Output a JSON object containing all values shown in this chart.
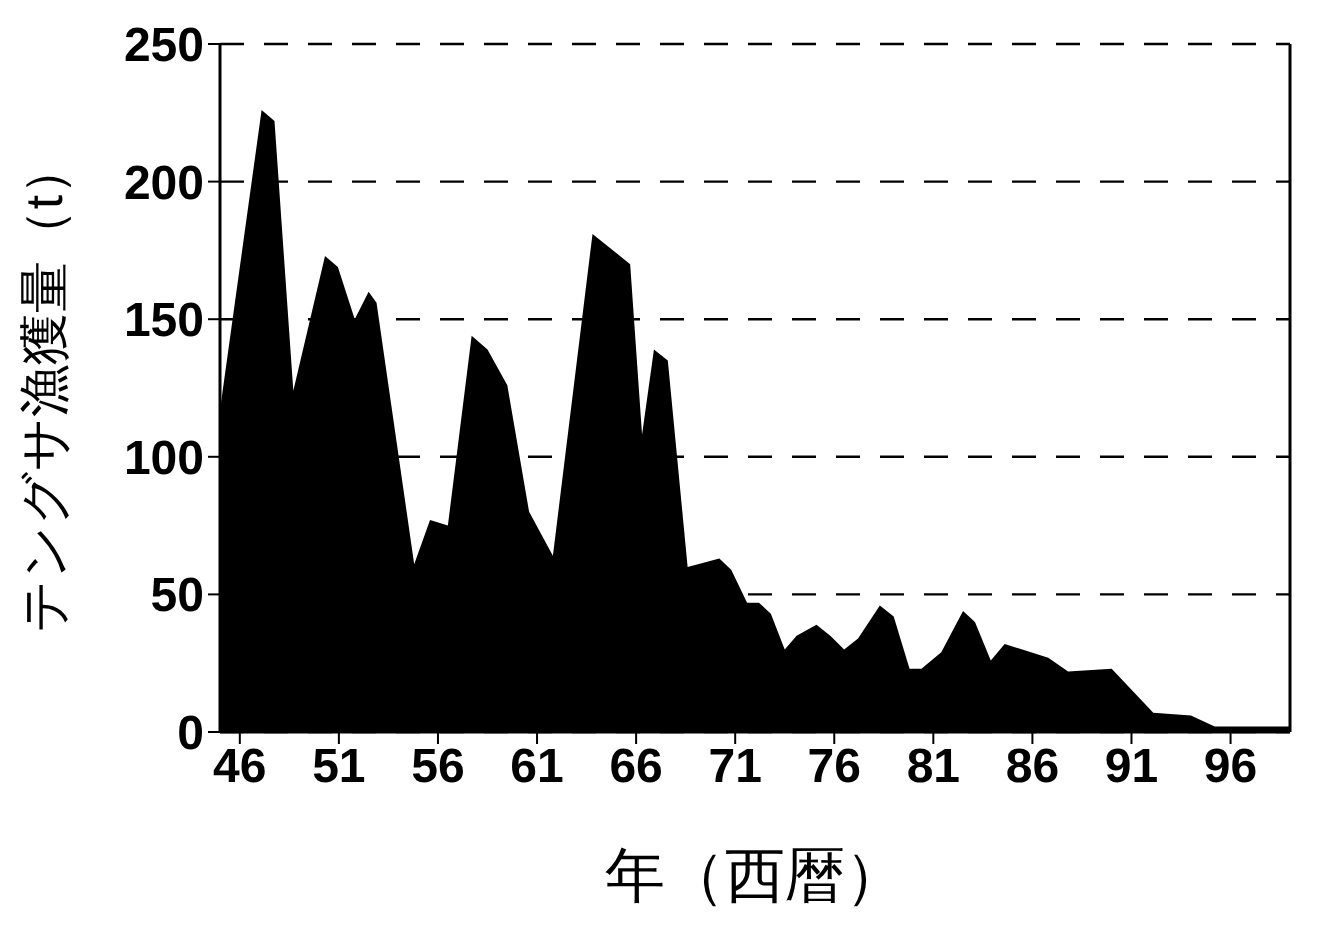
{
  "chart_data": {
    "type": "area",
    "xlabel": "年（西暦）",
    "ylabel": "テングサ漁獲量（t）",
    "x": [
      45.0,
      47.1,
      47.75,
      48.7,
      50.3,
      50.95,
      51.8,
      52.5,
      52.9,
      54.8,
      55.6,
      56.5,
      57.7,
      58.5,
      59.5,
      60.6,
      61.8,
      63.8,
      65.7,
      66.3,
      66.9,
      67.6,
      68.6,
      70.2,
      70.8,
      71.6,
      72.2,
      72.8,
      73.5,
      74.1,
      75.1,
      75.8,
      76.5,
      77.2,
      78.3,
      79.0,
      79.8,
      80.4,
      81.4,
      82.5,
      83.1,
      83.9,
      84.6,
      86.8,
      87.8,
      90.0,
      92.1,
      94.0,
      95.2,
      99.0
    ],
    "series": [
      {
        "color": "#000000",
        "values": [
          117,
          226,
          222,
          124,
          173,
          169,
          150,
          160,
          156,
          61,
          77,
          75,
          144,
          139,
          126,
          80,
          64,
          181,
          170,
          108,
          139,
          135,
          60,
          63,
          59,
          47,
          47,
          43,
          30,
          35,
          39,
          35,
          30,
          34,
          46,
          42,
          23,
          23,
          29,
          44,
          40,
          26,
          32,
          27,
          22,
          23,
          7,
          6,
          2,
          2
        ]
      }
    ],
    "xlim": [
      45,
      99
    ],
    "xticks": [
      46,
      51,
      56,
      61,
      66,
      71,
      76,
      81,
      86,
      91,
      96
    ],
    "ylim": [
      0,
      250
    ],
    "yticks": [
      0,
      50,
      100,
      150,
      200,
      250
    ],
    "grid": "y",
    "legend": false
  }
}
